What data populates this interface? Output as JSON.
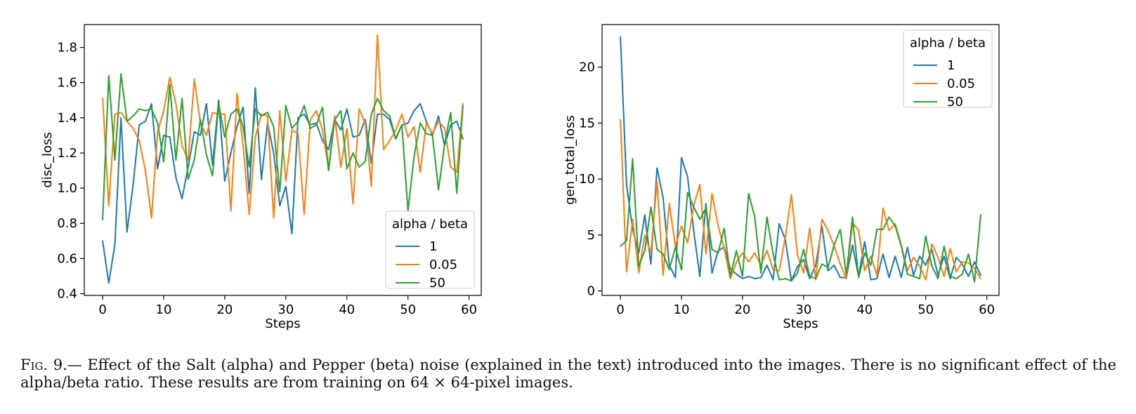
{
  "figure_label": "Fig. 9.",
  "caption": "— Effect of the Salt (alpha) and Pepper (beta) noise (explained in the text) introduced into the images. There is no significant effect of the alpha/beta ratio. These results are from training on 64 × 64-pixel images.",
  "colors": {
    "1": "#1f77b4",
    "0.05": "#ff7f0e",
    "50": "#2ca02c"
  },
  "chart_data": [
    {
      "type": "line",
      "title": "",
      "xlabel": "Steps",
      "ylabel": "disc_loss",
      "xlim": [
        -3.0,
        62.0
      ],
      "ylim": [
        0.39,
        1.93
      ],
      "xticks": [
        0,
        10,
        20,
        30,
        40,
        50,
        60
      ],
      "yticks": [
        0.4,
        0.6,
        0.8,
        1.0,
        1.2,
        1.4,
        1.6,
        1.8
      ],
      "ytick_labels": [
        "0.4",
        "0.6",
        "0.8",
        "1.0",
        "1.2",
        "1.4",
        "1.6",
        "1.8"
      ],
      "legend": {
        "title": "alpha / beta",
        "placement": "lower right"
      },
      "x": [
        0,
        1,
        2,
        3,
        4,
        5,
        6,
        7,
        8,
        9,
        10,
        11,
        12,
        13,
        14,
        15,
        16,
        17,
        18,
        19,
        20,
        21,
        22,
        23,
        24,
        25,
        26,
        27,
        28,
        29,
        30,
        31,
        32,
        33,
        34,
        35,
        36,
        37,
        38,
        39,
        40,
        41,
        42,
        43,
        44,
        45,
        46,
        47,
        48,
        49,
        50,
        51,
        52,
        53,
        54,
        55,
        56,
        57,
        58,
        59
      ],
      "series": [
        {
          "name": "1",
          "values": [
            0.7,
            0.46,
            0.68,
            1.4,
            0.75,
            1.02,
            1.36,
            1.38,
            1.48,
            1.11,
            1.3,
            1.29,
            1.06,
            0.94,
            1.12,
            1.32,
            1.3,
            1.48,
            1.13,
            1.5,
            1.04,
            1.2,
            1.35,
            1.46,
            0.97,
            1.57,
            1.05,
            1.37,
            1.2,
            0.9,
            1.01,
            0.74,
            1.4,
            1.42,
            1.36,
            1.37,
            1.27,
            1.22,
            1.39,
            1.33,
            1.45,
            1.29,
            1.3,
            1.39,
            1.14,
            1.42,
            1.42,
            1.39,
            1.28,
            1.36,
            1.37,
            1.44,
            1.48,
            1.38,
            1.3,
            1.41,
            1.24,
            1.36,
            1.38,
            1.28
          ]
        },
        {
          "name": "0.05",
          "values": [
            1.51,
            0.9,
            1.42,
            1.43,
            1.38,
            1.34,
            1.27,
            1.1,
            0.83,
            1.32,
            1.44,
            1.63,
            1.48,
            1.24,
            1.16,
            1.62,
            1.37,
            1.3,
            1.43,
            1.42,
            1.42,
            0.87,
            1.54,
            1.24,
            0.85,
            1.29,
            1.42,
            1.41,
            0.83,
            1.44,
            1.04,
            1.33,
            1.31,
            0.85,
            1.39,
            1.44,
            1.33,
            1.11,
            1.41,
            1.12,
            1.34,
            0.91,
            1.45,
            1.37,
            1.01,
            1.87,
            1.22,
            1.27,
            1.33,
            1.42,
            1.29,
            1.35,
            1.09,
            1.37,
            1.31,
            1.38,
            1.34,
            1.12,
            1.09,
            1.48
          ]
        },
        {
          "name": "50",
          "values": [
            0.82,
            1.64,
            1.16,
            1.65,
            1.38,
            1.41,
            1.45,
            1.44,
            1.45,
            1.37,
            1.15,
            1.59,
            1.16,
            1.51,
            1.05,
            1.16,
            1.39,
            1.19,
            1.07,
            1.48,
            1.29,
            1.42,
            1.45,
            1.35,
            1.12,
            1.45,
            1.41,
            1.43,
            1.35,
            0.98,
            1.47,
            1.34,
            1.38,
            1.47,
            1.34,
            1.36,
            1.46,
            1.1,
            1.39,
            1.44,
            1.11,
            1.2,
            1.12,
            1.15,
            1.42,
            1.51,
            1.44,
            1.41,
            1.28,
            1.36,
            0.87,
            1.18,
            1.37,
            1.31,
            1.3,
            0.99,
            1.25,
            1.43,
            0.97,
            1.47
          ]
        }
      ]
    },
    {
      "type": "line",
      "title": "",
      "xlabel": "Steps",
      "ylabel": "gen_total_loss",
      "xlim": [
        -3.0,
        62.0
      ],
      "ylim": [
        -0.4,
        23.8
      ],
      "xticks": [
        0,
        10,
        20,
        30,
        40,
        50,
        60
      ],
      "yticks": [
        0,
        5,
        10,
        15,
        20
      ],
      "ytick_labels": [
        "0",
        "5",
        "10",
        "15",
        "20"
      ],
      "legend": {
        "title": "alpha / beta",
        "placement": "upper right"
      },
      "x": [
        0,
        1,
        2,
        3,
        4,
        5,
        6,
        7,
        8,
        9,
        10,
        11,
        12,
        13,
        14,
        15,
        16,
        17,
        18,
        19,
        20,
        21,
        22,
        23,
        24,
        25,
        26,
        27,
        28,
        29,
        30,
        31,
        32,
        33,
        34,
        35,
        36,
        37,
        38,
        39,
        40,
        41,
        42,
        43,
        44,
        45,
        46,
        47,
        48,
        49,
        50,
        51,
        52,
        53,
        54,
        55,
        56,
        57,
        58,
        59
      ],
      "series": [
        {
          "name": "1",
          "values": [
            22.7,
            9.5,
            5.5,
            3.4,
            6.8,
            2.4,
            11.0,
            8.3,
            2.3,
            1.2,
            11.9,
            10.2,
            5.4,
            1.3,
            7.8,
            1.6,
            3.6,
            3.9,
            2.0,
            1.5,
            1.1,
            1.3,
            1.1,
            1.2,
            2.3,
            1.0,
            6.0,
            4.6,
            0.9,
            2.2,
            2.8,
            1.1,
            2.3,
            5.8,
            1.8,
            2.3,
            1.2,
            1.2,
            4.1,
            1.3,
            4.4,
            1.0,
            1.1,
            3.3,
            1.2,
            3.1,
            1.2,
            3.9,
            1.4,
            3.1,
            2.3,
            3.7,
            1.4,
            3.1,
            1.1,
            3.0,
            2.4,
            1.3,
            2.6,
            1.4
          ]
        },
        {
          "name": "0.05",
          "values": [
            15.3,
            1.7,
            6.4,
            1.6,
            5.0,
            3.4,
            9.8,
            1.4,
            7.8,
            4.0,
            5.8,
            4.3,
            7.6,
            9.5,
            3.3,
            8.7,
            5.8,
            3.8,
            1.1,
            2.6,
            3.4,
            2.6,
            3.4,
            2.3,
            3.6,
            1.9,
            1.8,
            4.8,
            8.6,
            3.2,
            1.6,
            5.6,
            1.0,
            6.4,
            5.4,
            4.0,
            2.4,
            1.1,
            6.1,
            5.4,
            1.8,
            3.1,
            1.4,
            7.4,
            5.4,
            6.0,
            4.1,
            1.8,
            3.0,
            2.2,
            1.0,
            4.2,
            3.0,
            1.3,
            3.8,
            1.7,
            2.6,
            2.5,
            2.0,
            1.1
          ]
        },
        {
          "name": "50",
          "values": [
            4.0,
            4.5,
            11.8,
            2.2,
            3.6,
            7.5,
            3.7,
            3.3,
            1.9,
            3.9,
            1.9,
            8.8,
            7.5,
            6.4,
            7.4,
            3.7,
            3.4,
            5.6,
            1.3,
            3.6,
            1.3,
            8.7,
            6.6,
            1.6,
            6.6,
            3.3,
            1.0,
            1.1,
            0.9,
            1.6,
            3.7,
            1.3,
            1.1,
            2.4,
            2.1,
            4.1,
            5.5,
            1.4,
            6.6,
            1.2,
            3.4,
            2.3,
            5.5,
            5.5,
            6.6,
            5.8,
            4.0,
            1.5,
            1.3,
            1.1,
            4.9,
            2.2,
            1.1,
            4.0,
            1.3,
            1.1,
            1.5,
            3.3,
            0.8,
            6.8
          ]
        }
      ]
    }
  ]
}
